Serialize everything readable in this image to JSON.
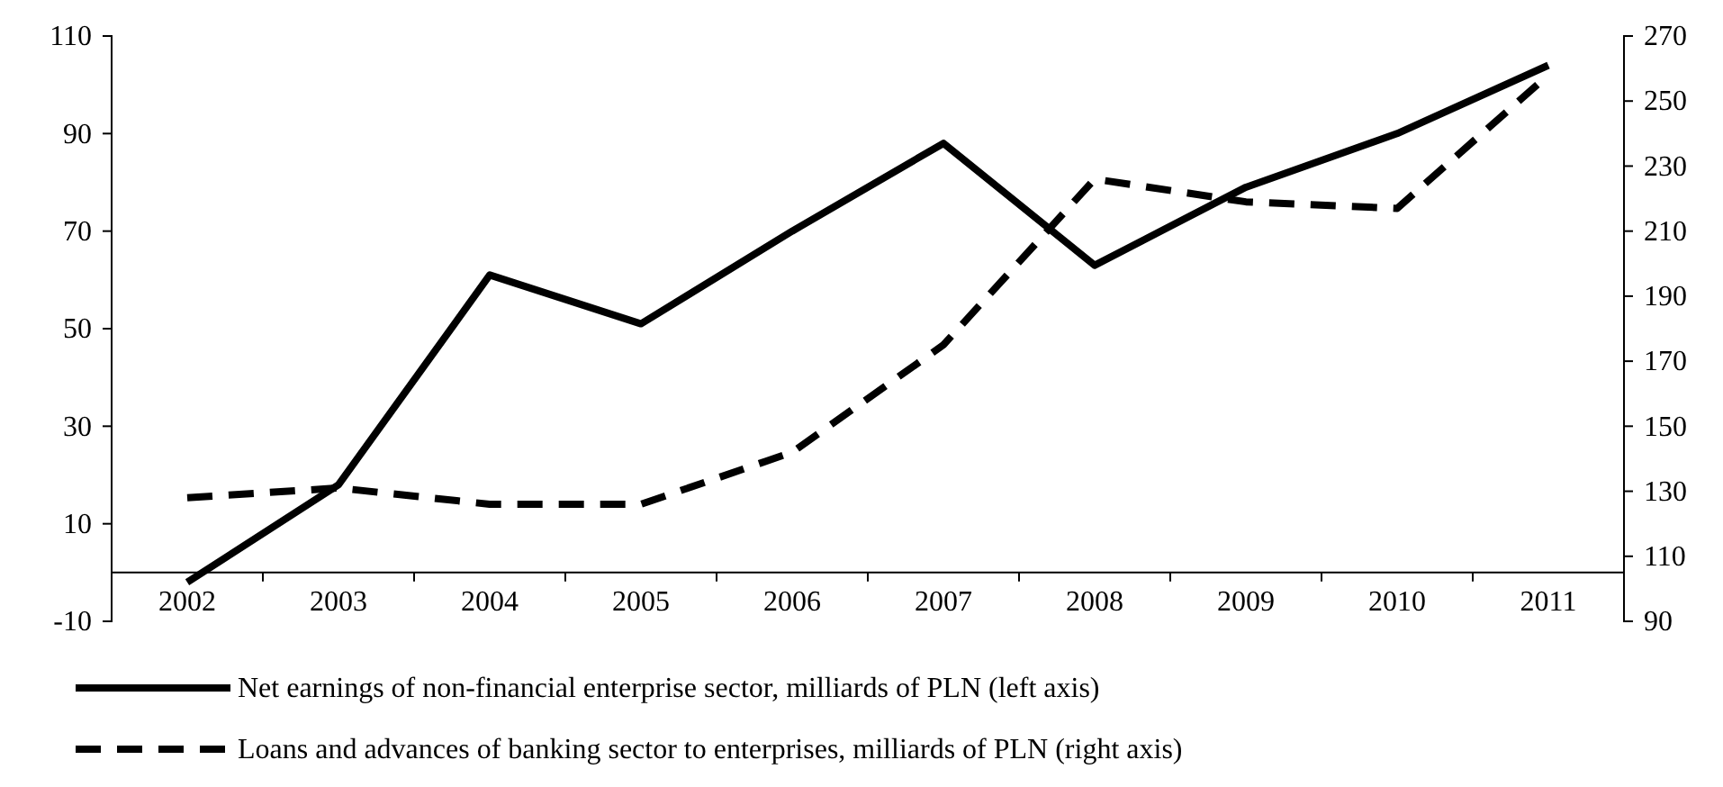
{
  "chart_data": {
    "type": "line",
    "categories": [
      "2002",
      "2003",
      "2004",
      "2005",
      "2006",
      "2007",
      "2008",
      "2009",
      "2010",
      "2011"
    ],
    "series": [
      {
        "name": "Net earnings of non-financial enterprise sector, milliards of PLN (left axis)",
        "color": "#000000",
        "line_style": "solid",
        "values": [
          -2,
          18,
          61,
          51,
          70,
          88,
          63,
          79,
          90,
          104
        ]
      },
      {
        "name": "Loans and advances of banking sector to enterprises, milliards of PLN (right axis)",
        "color": "#000000",
        "line_style": "dashed",
        "axis": "y2",
        "values": [
          128,
          131,
          126,
          126,
          142,
          175,
          226,
          219,
          217,
          258
        ]
      }
    ],
    "ylim": [
      -10,
      110
    ],
    "yticks": [
      -10,
      10,
      30,
      50,
      70,
      90,
      110
    ],
    "y2lim": [
      90,
      270
    ],
    "y2ticks": [
      90,
      110,
      130,
      150,
      170,
      190,
      210,
      230,
      250,
      270
    ],
    "grid": false,
    "legend": "bottom",
    "marker": "none"
  }
}
